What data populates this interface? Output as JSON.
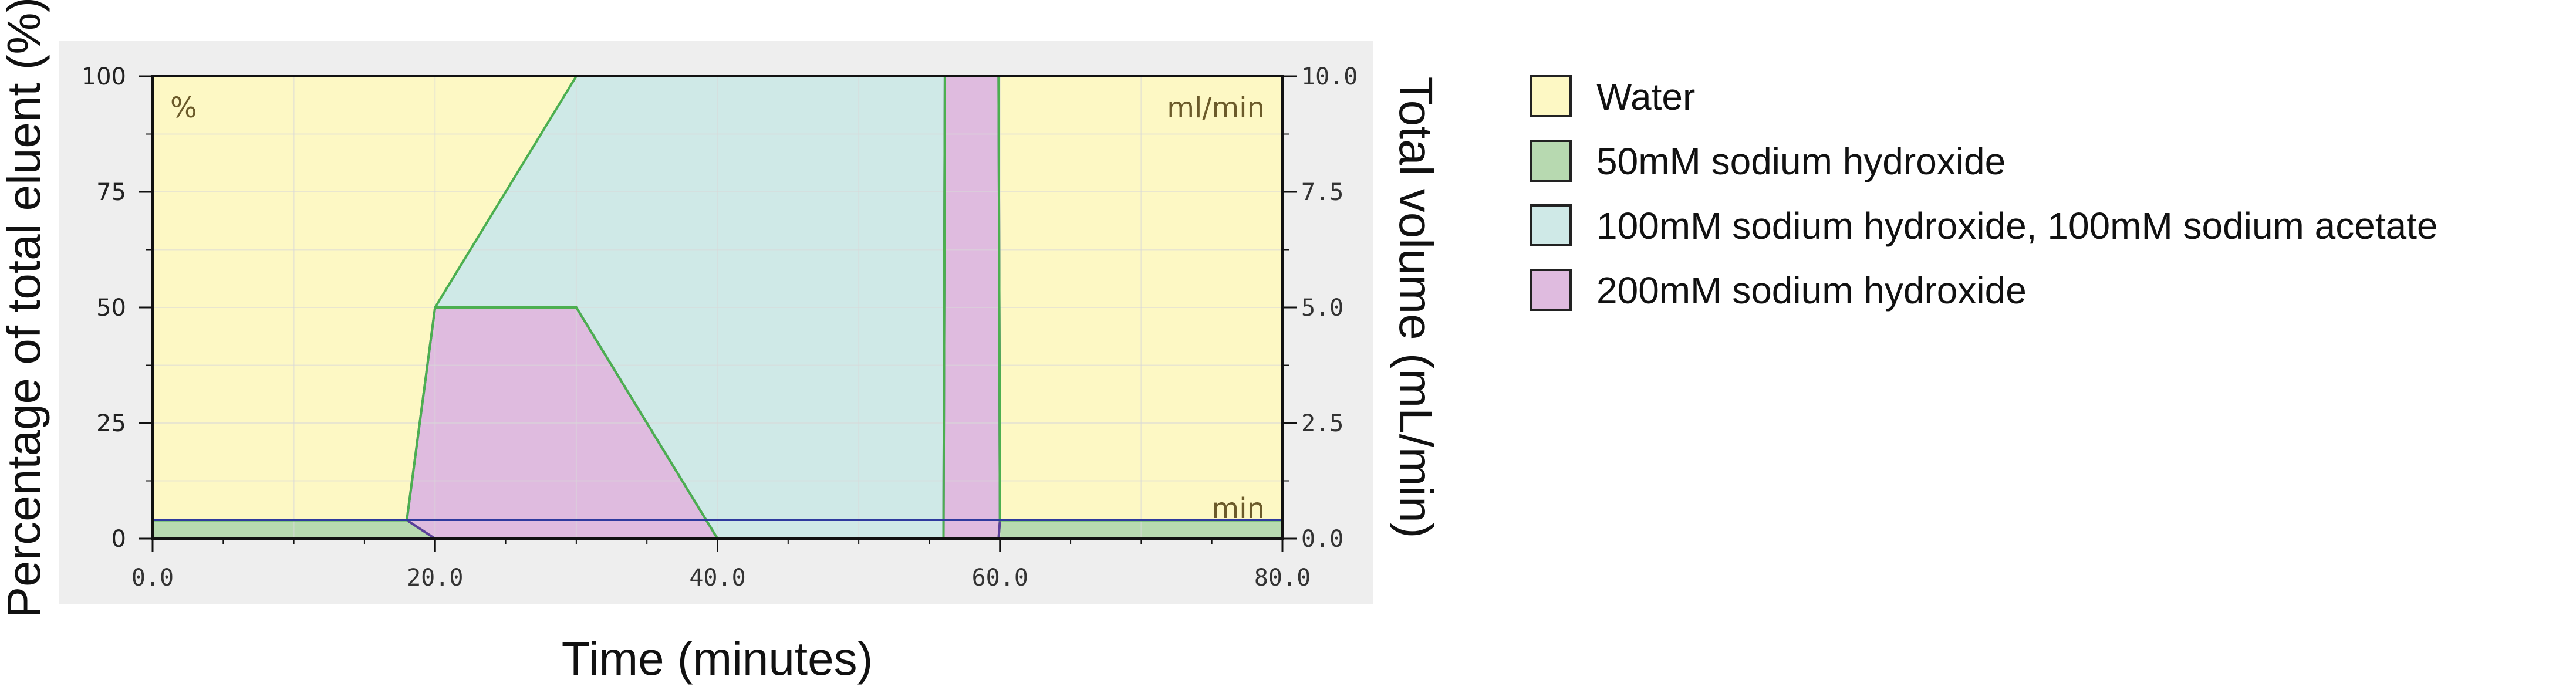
{
  "chart_data": {
    "type": "area",
    "x": [
      0,
      18,
      20,
      30,
      40,
      56,
      56.1,
      59.9,
      60,
      80
    ],
    "series": [
      {
        "name": "50mM sodium hydroxide",
        "values": [
          4,
          4,
          0,
          0,
          0,
          0,
          0,
          0,
          4,
          4
        ],
        "color": "#b7d9b0",
        "line": "#4caf50"
      },
      {
        "name": "200mM sodium hydroxide",
        "values": [
          0,
          0,
          50,
          50,
          0,
          0,
          100,
          100,
          0,
          0
        ],
        "color": "#dfbbdf",
        "line": "#5b3f9b"
      },
      {
        "name": "100mM sodium hydroxide, 100mM sodium acetate",
        "values": [
          0,
          0,
          0,
          50,
          100,
          100,
          0,
          0,
          0,
          0
        ],
        "color": "#cfe9e7",
        "line": "#4caf50"
      },
      {
        "name": "Water",
        "values": [
          96,
          96,
          50,
          0,
          0,
          0,
          0,
          0,
          96,
          96
        ],
        "color": "#fdf8c4"
      }
    ],
    "flow_line": {
      "y": 4,
      "color": "#2e3a9e"
    },
    "xlim": [
      0,
      80
    ],
    "ylim": [
      0,
      100
    ],
    "y2lim": [
      0,
      10
    ],
    "xticks": [
      "0.0",
      "20.0",
      "40.0",
      "60.0",
      "80.0"
    ],
    "yticks": [
      "0",
      "25",
      "50",
      "75",
      "100"
    ],
    "y2ticks": [
      "0.0",
      "2.5",
      "5.0",
      "7.5",
      "10.0"
    ],
    "xlabel": "Time (minutes)",
    "ylabel": "Percentage of total eluent (%)",
    "y2label": "Total volume (mL/min)",
    "corner_labels": {
      "top_left": "%",
      "top_right": "ml/min",
      "bottom_right": "min"
    },
    "grid": true,
    "legend_position": "right"
  },
  "colors": {
    "panel_background": "#eeeeee",
    "grid": "#d9d9d9",
    "axis": "#111111"
  }
}
